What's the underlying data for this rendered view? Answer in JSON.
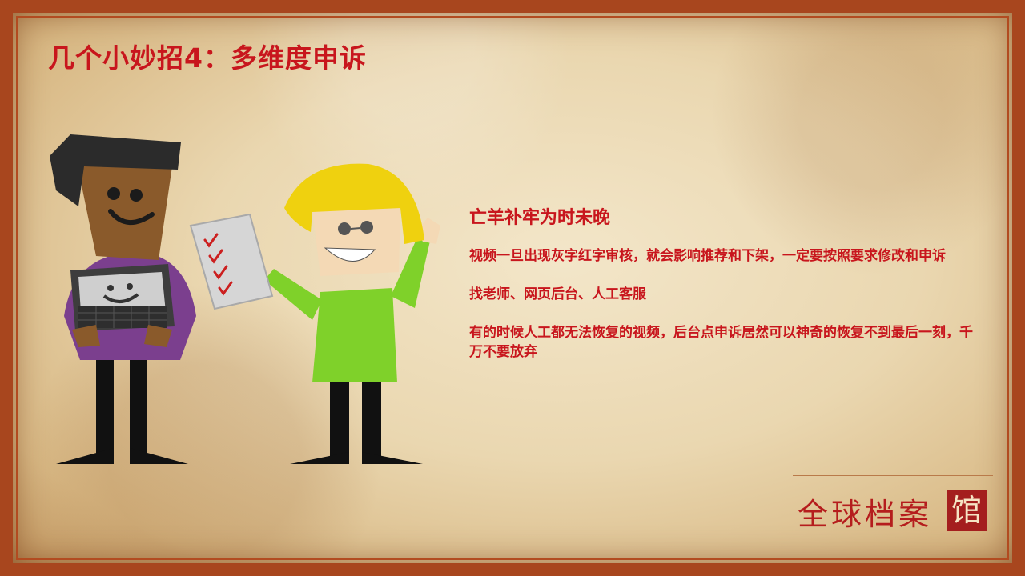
{
  "slide": {
    "title": "几个小妙招4：多维度申诉",
    "subtitle": "亡羊补牢为时未晚",
    "paragraphs": [
      "视频一旦出现灰字红字审核，就会影响推荐和下架，一定要按照要求修改和申诉",
      "找老师、网页后台、人工客服",
      "有的时候人工都无法恢复的视频，后台点申诉居然可以神奇的恢复不到最后一刻，千万不要放弃"
    ]
  },
  "brand": {
    "name": "全球档案",
    "last_char": "馆"
  },
  "colors": {
    "accent_red": "#c8161d",
    "frame": "#a8461e",
    "paper": "#ead7b0"
  }
}
